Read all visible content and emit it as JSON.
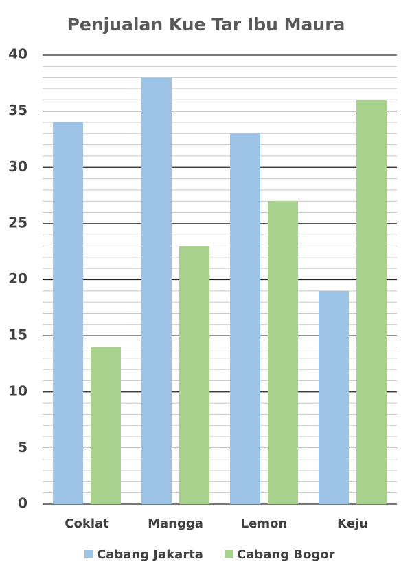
{
  "chart_data": {
    "type": "bar",
    "title": "Penjualan Kue Tar Ibu Maura",
    "categories": [
      "Coklat",
      "Mangga",
      "Lemon",
      "Keju"
    ],
    "series": [
      {
        "name": "Cabang Jakarta",
        "color": "#9dc3e6",
        "values": [
          34,
          38,
          33,
          19
        ]
      },
      {
        "name": "Cabang Bogor",
        "color": "#a9d18e",
        "values": [
          14,
          23,
          27,
          36
        ]
      }
    ],
    "ylim": [
      0,
      40
    ],
    "yticks": [
      0,
      5,
      10,
      15,
      20,
      25,
      30,
      35,
      40
    ],
    "grid": true,
    "minor_grid_step": 1,
    "legend": "bottom"
  }
}
